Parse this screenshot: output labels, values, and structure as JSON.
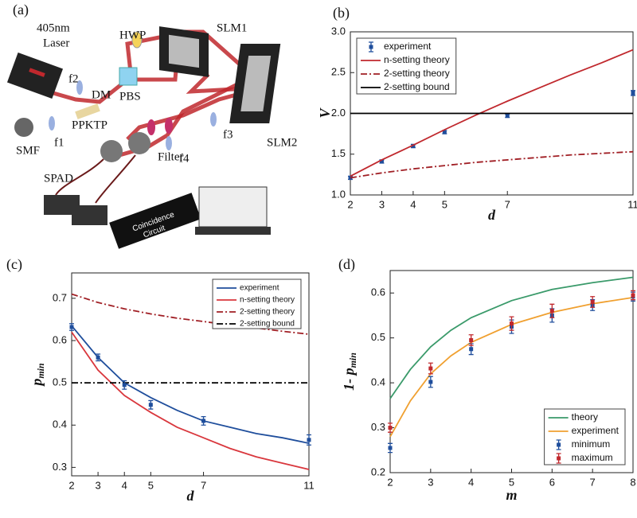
{
  "diagram": {
    "panel_label": "(a)",
    "labels": [
      "405nm",
      "Laser",
      "HWP",
      "SLM1",
      "PBS",
      "f2",
      "DM",
      "PPKTP",
      "f1",
      "SMF",
      "f3",
      "SLM2",
      "f4",
      "Filter",
      "SPAD",
      "Coincidence",
      "Circuit"
    ]
  },
  "chart_data": [
    {
      "type": "line",
      "panel_label": "(b)",
      "xlabel": "d",
      "ylabel": "V",
      "legend": "upper left",
      "legend_font": 12,
      "xlim": [
        2,
        11
      ],
      "xticks": [
        2,
        3,
        4,
        5,
        7,
        11
      ],
      "ylim": [
        1,
        3
      ],
      "yticks": [
        {
          "value": 1,
          "label": "1.0"
        },
        1.5,
        {
          "value": 2,
          "label": "2.0"
        },
        2.5,
        {
          "value": 3,
          "label": "3.0"
        }
      ],
      "series": [
        {
          "name": "experiment",
          "color": "#1f4e9c",
          "x": [
            2,
            3,
            4,
            5,
            7,
            11
          ],
          "values": [
            1.21,
            1.41,
            1.6,
            1.77,
            1.97,
            2.25
          ],
          "errors": [
            0.02,
            0.02,
            0.02,
            0.02,
            0.02,
            0.03
          ]
        },
        {
          "name": "n-setting theory",
          "color": "#c0282d",
          "linestyle": "solid",
          "x": [
            2,
            3,
            4,
            5,
            6,
            7,
            8,
            9,
            10,
            11
          ],
          "values": [
            1.23,
            1.43,
            1.61,
            1.8,
            1.98,
            2.15,
            2.31,
            2.47,
            2.62,
            2.78
          ]
        },
        {
          "name": "2-setting theory",
          "color": "#a01e24",
          "linestyle": "dashdot",
          "x": [
            2,
            3,
            4,
            5,
            6,
            7,
            8,
            9,
            10,
            11
          ],
          "values": [
            1.21,
            1.27,
            1.32,
            1.36,
            1.4,
            1.43,
            1.46,
            1.49,
            1.51,
            1.53
          ]
        },
        {
          "name": "2-setting bound",
          "color": "#000000",
          "linestyle": "solid",
          "x": [
            2,
            11
          ],
          "values": [
            2,
            2
          ]
        }
      ]
    },
    {
      "type": "line",
      "panel_label": "(c)",
      "xlabel": "d",
      "ylabel": "p",
      "ylabel_sub": "min",
      "legend": "upper right",
      "legend_font": 10,
      "xlim": [
        2,
        11
      ],
      "xticks": [
        2,
        3,
        4,
        5,
        7,
        11
      ],
      "ylim": [
        0.28,
        0.76
      ],
      "yticks": [
        0.3,
        0.4,
        0.5,
        0.6,
        0.7
      ],
      "series": [
        {
          "name": "experiment",
          "color": "#1f4e9c",
          "linestyle": "solid",
          "x": [
            2,
            3,
            4,
            5,
            6,
            7,
            8,
            9,
            10,
            11
          ],
          "values": [
            0.635,
            0.56,
            0.5,
            0.465,
            0.435,
            0.41,
            0.395,
            0.38,
            0.37,
            0.357
          ]
        },
        {
          "name": "n-setting theory",
          "color": "#d9373d",
          "linestyle": "solid",
          "x": [
            2,
            3,
            4,
            5,
            6,
            7,
            8,
            9,
            10,
            11
          ],
          "values": [
            0.62,
            0.53,
            0.47,
            0.43,
            0.395,
            0.37,
            0.345,
            0.325,
            0.31,
            0.295
          ]
        },
        {
          "name": "2-setting theory",
          "color": "#a01e24",
          "linestyle": "dashdot",
          "x": [
            2,
            3,
            4,
            5,
            6,
            7,
            8,
            9,
            10,
            11
          ],
          "values": [
            0.71,
            0.69,
            0.675,
            0.663,
            0.653,
            0.645,
            0.637,
            0.63,
            0.622,
            0.615
          ]
        },
        {
          "name": "2-setting bound",
          "color": "#000000",
          "linestyle": "dashdot",
          "x": [
            2,
            11
          ],
          "values": [
            0.5,
            0.5
          ]
        },
        {
          "color": "#1f4e9c",
          "x": [
            2,
            3,
            4,
            5,
            7,
            11
          ],
          "values": [
            0.632,
            0.56,
            0.495,
            0.448,
            0.41,
            0.365
          ],
          "errors": [
            0.008,
            0.008,
            0.01,
            0.01,
            0.01,
            0.012
          ]
        }
      ]
    },
    {
      "type": "line",
      "panel_label": "(d)",
      "xlabel": "m",
      "ylabel": "1- p",
      "ylabel_sub": "min",
      "legend": "lower right",
      "legend_font": 12,
      "xlim": [
        2,
        8
      ],
      "xticks": [
        2,
        3,
        4,
        5,
        6,
        7,
        8
      ],
      "ylim": [
        0.2,
        0.65
      ],
      "yticks": [
        0.2,
        0.3,
        0.4,
        0.5,
        0.6
      ],
      "series": [
        {
          "name": "theory",
          "color": "#3a9a6a",
          "linestyle": "solid",
          "x": [
            2,
            2.5,
            3,
            3.5,
            4,
            5,
            6,
            7,
            8
          ],
          "values": [
            0.365,
            0.43,
            0.48,
            0.517,
            0.545,
            0.583,
            0.608,
            0.623,
            0.635
          ]
        },
        {
          "name": "experiment",
          "color": "#f0a030",
          "linestyle": "solid",
          "x": [
            2,
            2.5,
            3,
            3.5,
            4,
            5,
            6,
            7,
            8
          ],
          "values": [
            0.28,
            0.36,
            0.42,
            0.46,
            0.49,
            0.53,
            0.557,
            0.576,
            0.59
          ]
        },
        {
          "name": "minimum",
          "color": "#1f4e9c",
          "x": [
            2,
            3,
            4,
            5,
            6,
            7,
            8
          ],
          "values": [
            0.255,
            0.402,
            0.475,
            0.525,
            0.55,
            0.573,
            0.592
          ],
          "errors": [
            0.01,
            0.012,
            0.012,
            0.015,
            0.015,
            0.012,
            0.01
          ]
        },
        {
          "name": "maximum",
          "color": "#c0282d",
          "x": [
            2,
            3,
            4,
            5,
            6,
            7,
            8
          ],
          "values": [
            0.3,
            0.432,
            0.495,
            0.532,
            0.56,
            0.58,
            0.595
          ],
          "errors": [
            0.01,
            0.012,
            0.012,
            0.015,
            0.015,
            0.012,
            0.01
          ]
        }
      ]
    }
  ]
}
